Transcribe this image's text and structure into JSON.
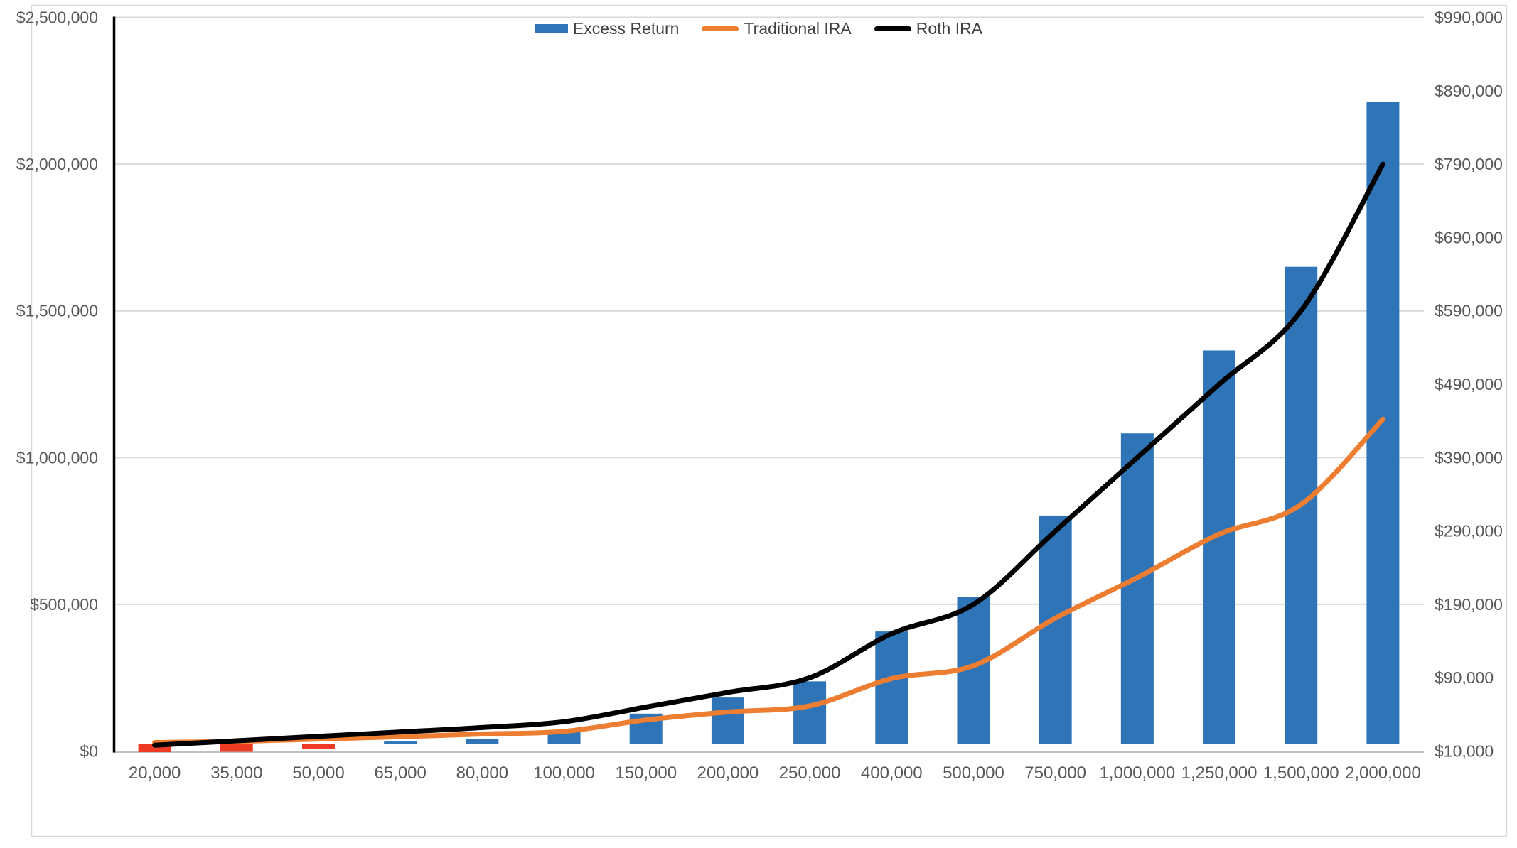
{
  "chart_data": {
    "type": "combo",
    "categories": [
      "20,000",
      "35,000",
      "50,000",
      "65,000",
      "80,000",
      "100,000",
      "150,000",
      "200,000",
      "250,000",
      "400,000",
      "500,000",
      "750,000",
      "1,000,000",
      "1,250,000",
      "1,500,000",
      "2,000,000"
    ],
    "series": [
      {
        "name": "Excess Return",
        "type": "bar",
        "axis": "right",
        "color": "#2E74B6",
        "negative_color": "#EF3B24",
        "values": [
          -13000,
          -11000,
          -7000,
          3000,
          6000,
          17000,
          41000,
          63000,
          85000,
          153000,
          200000,
          311000,
          423000,
          536000,
          650000,
          875000
        ]
      },
      {
        "name": "Traditional IRA",
        "type": "line",
        "axis": "left",
        "color": "#ED7D31",
        "values": [
          29000,
          33000,
          41000,
          49000,
          58000,
          67000,
          106000,
          133000,
          154000,
          247000,
          291000,
          453000,
          591000,
          739000,
          840000,
          1131000
        ]
      },
      {
        "name": "Roth IRA",
        "type": "line",
        "axis": "left",
        "color": "#000000",
        "values": [
          20000,
          35000,
          50000,
          65000,
          80000,
          100000,
          150000,
          200000,
          250000,
          400000,
          500000,
          750000,
          1000000,
          1250000,
          1500000,
          2000000
        ]
      }
    ],
    "left_axis": {
      "min": 0,
      "max": 2500000,
      "tick_step": 500000,
      "labels": [
        "$0",
        "$500,000",
        "$1,000,000",
        "$1,500,000",
        "$2,000,000",
        "$2,500,000"
      ]
    },
    "right_axis": {
      "min": -10000,
      "max": 990000,
      "tick_step": 100000,
      "labels": [
        "$10,000",
        "$90,000",
        "$190,000",
        "$290,000",
        "$390,000",
        "$490,000",
        "$590,000",
        "$690,000",
        "$790,000",
        "$890,000",
        "$990,000"
      ],
      "min_label_color": "#FF0000"
    },
    "legend_position": "top",
    "grid": true,
    "colors": {
      "gridline": "#D9D9D9",
      "bottom_axis": "#BFBFBF",
      "left_axis_line": "#000000",
      "axis_label": "#595959",
      "chart_border": "#D9D9D9"
    }
  }
}
